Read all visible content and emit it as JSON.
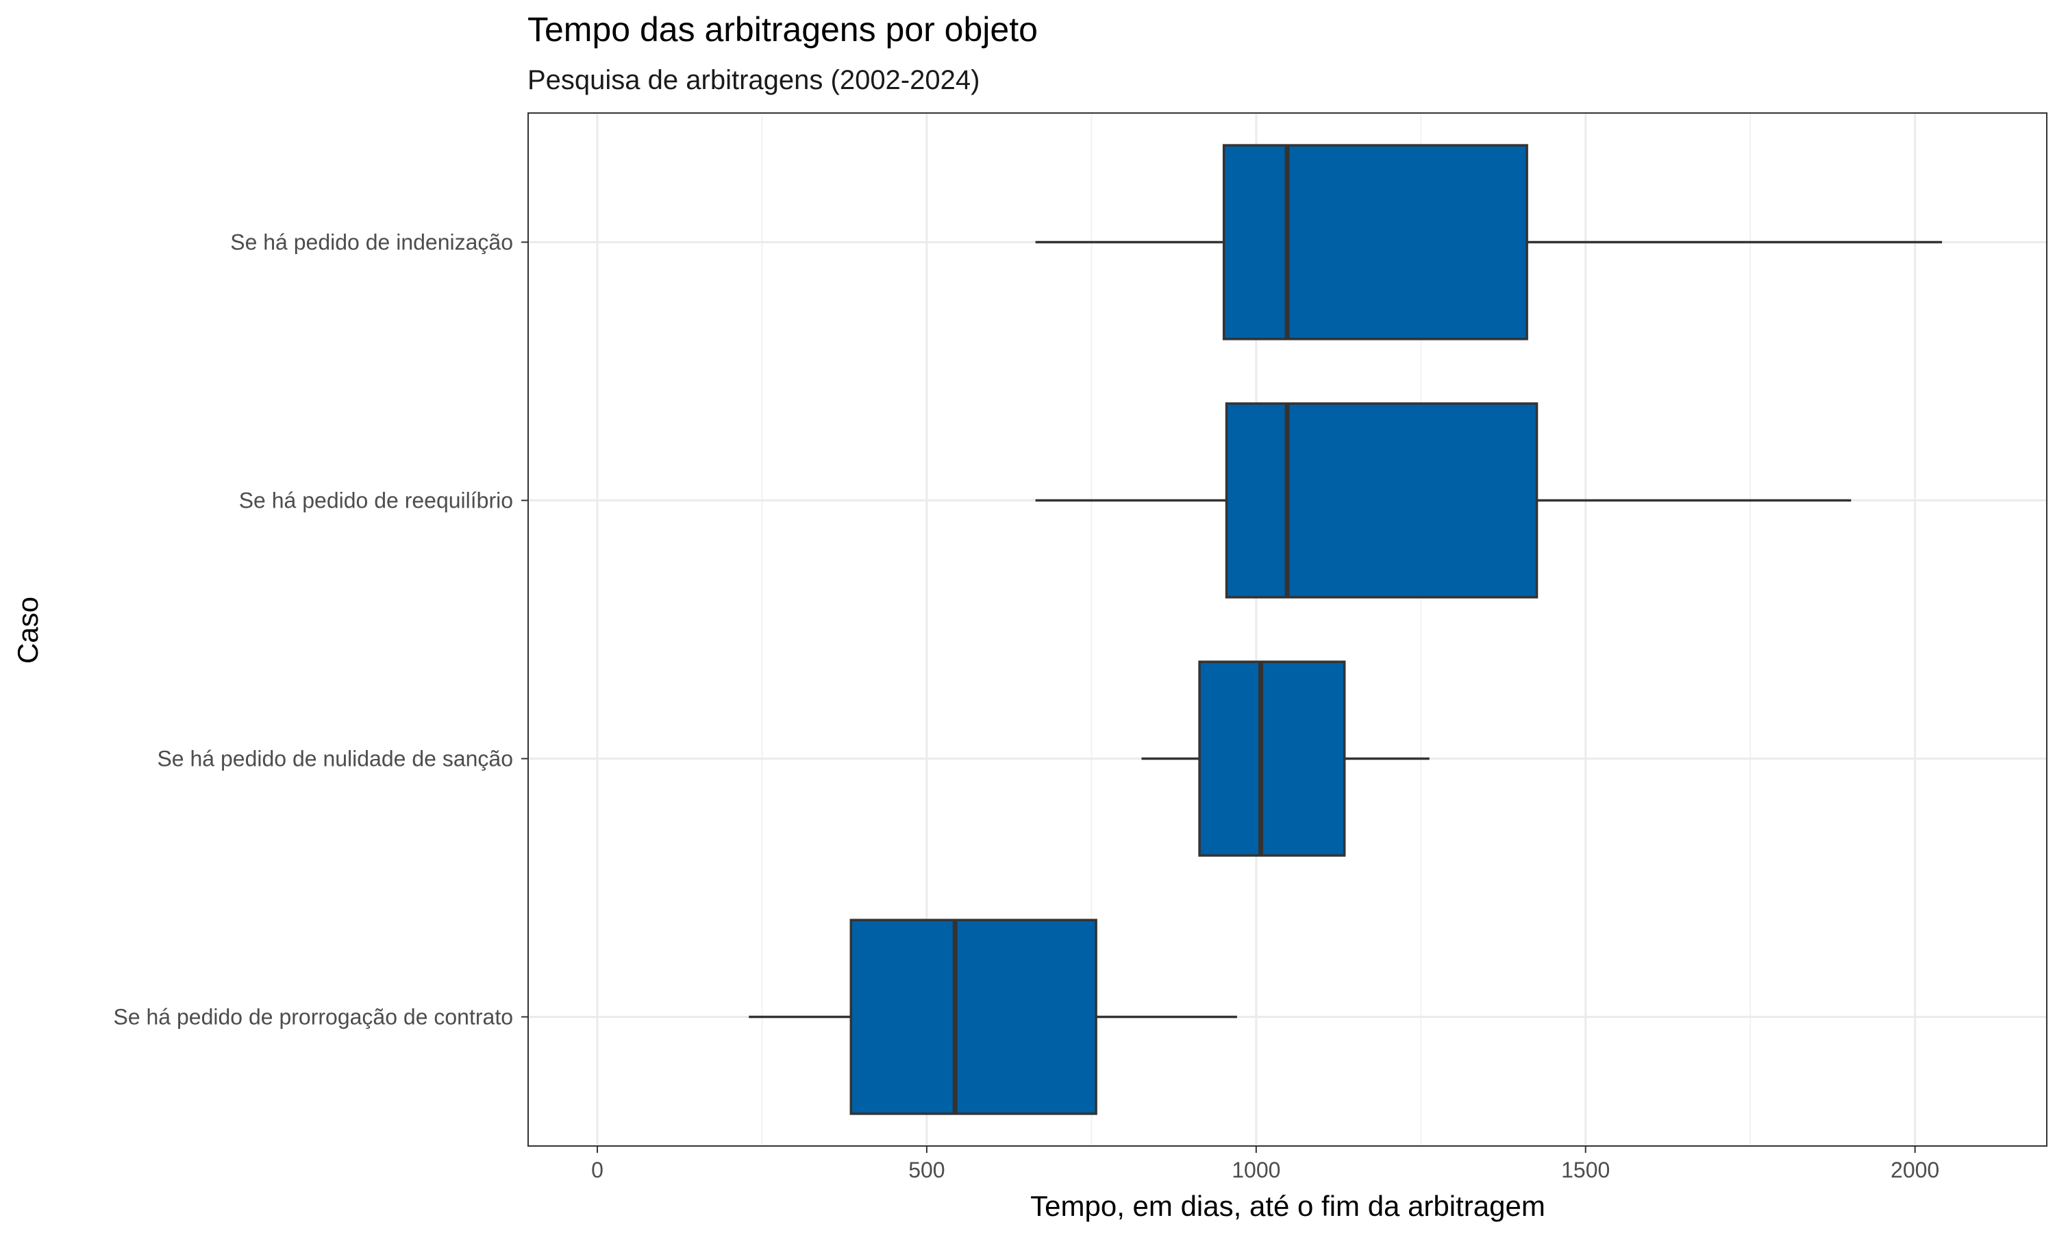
{
  "chart_data": {
    "type": "boxplot",
    "orientation": "horizontal",
    "title": "Tempo das arbitragens por objeto",
    "subtitle": "Pesquisa de arbitragens (2002-2024)",
    "xlabel": "Tempo, em dias, até o fim da arbitragem",
    "ylabel": "Caso",
    "xlim": [
      -105,
      2200
    ],
    "x_ticks": [
      0,
      500,
      1000,
      1500,
      2000
    ],
    "x_tick_labels": [
      "0",
      "500",
      "1000",
      "1500",
      "2000"
    ],
    "x_minor_ticks": [
      250,
      750,
      1250,
      1750
    ],
    "grid": true,
    "categories": [
      "Se há pedido de indenização",
      "Se há pedido de reequilíbrio",
      "Se há pedido de nulidade de sanção",
      "Se há pedido de prorrogação de contrato"
    ],
    "boxes": [
      {
        "whisker_low": 665,
        "q1": 951,
        "median": 1047,
        "q3": 1411,
        "whisker_high": 2041
      },
      {
        "whisker_low": 665,
        "q1": 955,
        "median": 1047,
        "q3": 1426,
        "whisker_high": 1903
      },
      {
        "whisker_low": 826,
        "q1": 914,
        "median": 1007,
        "q3": 1134,
        "whisker_high": 1263
      },
      {
        "whisker_low": 230,
        "q1": 385,
        "median": 543,
        "q3": 757,
        "whisker_high": 971
      }
    ],
    "fill_color": "#0060A6",
    "line_color": "#333333"
  }
}
